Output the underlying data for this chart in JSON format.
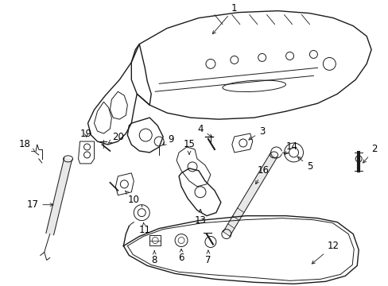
{
  "bg_color": "#ffffff",
  "line_color": "#1a1a1a",
  "text_color": "#000000",
  "font_size": 8.5,
  "figsize": [
    4.89,
    3.6
  ],
  "dpi": 100
}
